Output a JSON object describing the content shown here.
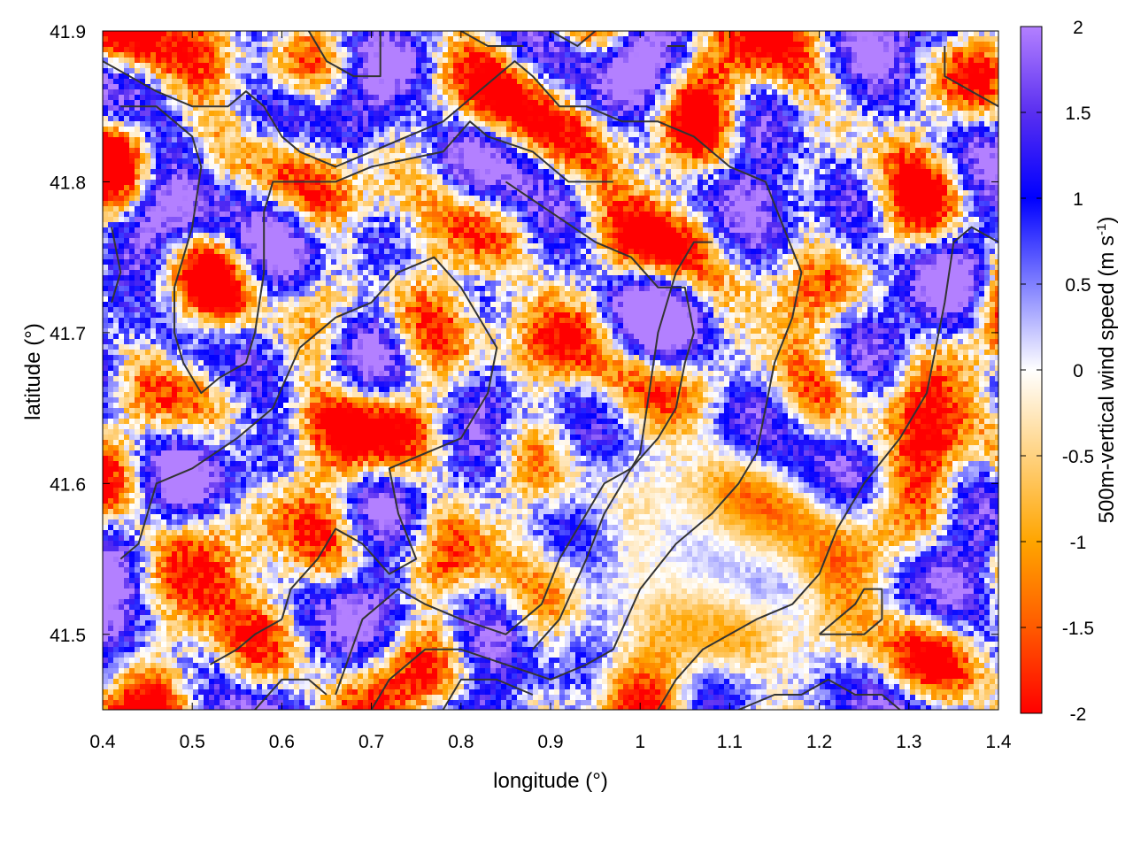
{
  "chart_data": {
    "type": "heatmap",
    "title": "",
    "xlabel": "longitude (°)",
    "ylabel": "latitude (°)",
    "colorbar_label_main": "500m-vertical wind speed (m s",
    "colorbar_label_sup": "-1",
    "colorbar_label_close": ")",
    "xlim": [
      0.4,
      1.4
    ],
    "ylim": [
      41.45,
      41.9
    ],
    "zlim": [
      -2,
      2
    ],
    "x_ticks": [
      0.4,
      0.5,
      0.6,
      0.7,
      0.8,
      0.9,
      1.0,
      1.1,
      1.2,
      1.3,
      1.4
    ],
    "x_tick_labels": [
      "0.4",
      "0.5",
      "0.6",
      "0.7",
      "0.8",
      "0.9",
      "1",
      "1.1",
      "1.2",
      "1.3",
      "1.4"
    ],
    "y_ticks": [
      41.5,
      41.6,
      41.7,
      41.8,
      41.9
    ],
    "y_tick_labels": [
      "41.5",
      "41.6",
      "41.7",
      "41.8",
      "41.9"
    ],
    "cb_ticks": [
      -2,
      -1.5,
      -1,
      -0.5,
      0,
      0.5,
      1,
      1.5,
      2
    ],
    "cb_tick_labels": [
      "-2",
      "-1.5",
      "-1",
      "-0.5",
      "0",
      "0.5",
      "1",
      "1.5",
      "2"
    ],
    "colormap": [
      {
        "v": -2.0,
        "color": "#ff0000"
      },
      {
        "v": -1.5,
        "color": "#ff5a00"
      },
      {
        "v": -1.0,
        "color": "#ffa500"
      },
      {
        "v": -0.5,
        "color": "#ffd280"
      },
      {
        "v": 0.0,
        "color": "#ffffff"
      },
      {
        "v": 0.5,
        "color": "#8080ff"
      },
      {
        "v": 1.0,
        "color": "#0000ff"
      },
      {
        "v": 1.5,
        "color": "#5a2ff0"
      },
      {
        "v": 2.0,
        "color": "#b380ff"
      }
    ],
    "contour_color": "#333333",
    "grid": false,
    "contours": [
      [
        [
          0.4,
          41.88
        ],
        [
          0.46,
          41.86
        ],
        [
          0.5,
          41.85
        ],
        [
          0.54,
          41.85
        ],
        [
          0.56,
          41.86
        ],
        [
          0.58,
          41.85
        ],
        [
          0.6,
          41.83
        ],
        [
          0.62,
          41.82
        ],
        [
          0.66,
          41.81
        ],
        [
          0.7,
          41.82
        ],
        [
          0.74,
          41.83
        ],
        [
          0.78,
          41.84
        ],
        [
          0.82,
          41.86
        ],
        [
          0.86,
          41.88
        ],
        [
          0.88,
          41.87
        ],
        [
          0.91,
          41.85
        ],
        [
          0.94,
          41.85
        ],
        [
          0.98,
          41.84
        ],
        [
          1.02,
          41.84
        ],
        [
          1.06,
          41.83
        ],
        [
          1.1,
          41.81
        ],
        [
          1.14,
          41.8
        ],
        [
          1.16,
          41.77
        ],
        [
          1.18,
          41.74
        ],
        [
          1.17,
          41.71
        ],
        [
          1.15,
          41.68
        ],
        [
          1.14,
          41.65
        ],
        [
          1.13,
          41.62
        ],
        [
          1.11,
          41.6
        ],
        [
          1.08,
          41.58
        ],
        [
          1.04,
          41.56
        ],
        [
          1.0,
          41.53
        ],
        [
          0.97,
          41.49
        ],
        [
          0.94,
          41.48
        ],
        [
          0.9,
          41.47
        ],
        [
          0.85,
          41.48
        ],
        [
          0.8,
          41.49
        ],
        [
          0.76,
          41.49
        ],
        [
          0.72,
          41.47
        ],
        [
          0.7,
          41.45
        ]
      ],
      [
        [
          0.42,
          41.85
        ],
        [
          0.46,
          41.85
        ],
        [
          0.5,
          41.83
        ],
        [
          0.51,
          41.81
        ],
        [
          0.5,
          41.77
        ],
        [
          0.48,
          41.73
        ],
        [
          0.48,
          41.7
        ],
        [
          0.49,
          41.68
        ],
        [
          0.51,
          41.66
        ],
        [
          0.53,
          41.67
        ],
        [
          0.56,
          41.68
        ],
        [
          0.57,
          41.7
        ],
        [
          0.58,
          41.74
        ],
        [
          0.58,
          41.78
        ],
        [
          0.59,
          41.8
        ],
        [
          0.62,
          41.8
        ],
        [
          0.66,
          41.8
        ],
        [
          0.7,
          41.81
        ],
        [
          0.78,
          41.82
        ],
        [
          0.81,
          41.84
        ],
        [
          0.83,
          41.83
        ],
        [
          0.88,
          41.82
        ],
        [
          0.92,
          41.8
        ],
        [
          0.95,
          41.8
        ],
        [
          0.97,
          41.8
        ]
      ],
      [
        [
          0.85,
          41.8
        ],
        [
          0.9,
          41.78
        ],
        [
          0.95,
          41.76
        ],
        [
          0.99,
          41.75
        ],
        [
          1.02,
          41.73
        ],
        [
          1.05,
          41.73
        ],
        [
          1.06,
          41.7
        ],
        [
          1.05,
          41.68
        ],
        [
          1.04,
          41.65
        ],
        [
          1.02,
          41.63
        ],
        [
          0.99,
          41.61
        ],
        [
          0.96,
          41.58
        ],
        [
          0.94,
          41.55
        ],
        [
          0.91,
          41.51
        ],
        [
          0.88,
          41.49
        ]
      ],
      [
        [
          0.52,
          41.48
        ],
        [
          0.55,
          41.49
        ],
        [
          0.57,
          41.5
        ],
        [
          0.6,
          41.51
        ],
        [
          0.61,
          41.53
        ],
        [
          0.64,
          41.55
        ],
        [
          0.66,
          41.57
        ],
        [
          0.69,
          41.56
        ],
        [
          0.72,
          41.54
        ],
        [
          0.75,
          41.55
        ],
        [
          0.73,
          41.58
        ],
        [
          0.72,
          41.61
        ],
        [
          0.76,
          41.62
        ],
        [
          0.8,
          41.63
        ],
        [
          0.83,
          41.66
        ],
        [
          0.84,
          41.69
        ],
        [
          0.83,
          41.7
        ],
        [
          0.8,
          41.73
        ],
        [
          0.77,
          41.75
        ],
        [
          0.73,
          41.74
        ],
        [
          0.7,
          41.72
        ],
        [
          0.66,
          41.71
        ],
        [
          0.62,
          41.69
        ],
        [
          0.59,
          41.65
        ],
        [
          0.55,
          41.63
        ],
        [
          0.5,
          41.61
        ],
        [
          0.46,
          41.6
        ],
        [
          0.44,
          41.56
        ],
        [
          0.42,
          41.55
        ]
      ],
      [
        [
          0.66,
          41.46
        ],
        [
          0.69,
          41.51
        ],
        [
          0.73,
          41.53
        ],
        [
          0.76,
          41.52
        ],
        [
          0.8,
          41.51
        ],
        [
          0.85,
          41.5
        ],
        [
          0.89,
          41.52
        ],
        [
          0.91,
          41.55
        ],
        [
          0.94,
          41.58
        ],
        [
          0.96,
          41.6
        ],
        [
          0.99,
          41.61
        ],
        [
          1.0,
          41.62
        ],
        [
          1.01,
          41.66
        ],
        [
          1.02,
          41.7
        ],
        [
          1.04,
          41.74
        ],
        [
          1.06,
          41.76
        ],
        [
          1.08,
          41.76
        ],
        [
          1.06,
          41.76
        ]
      ],
      [
        [
          0.57,
          41.45
        ],
        [
          0.6,
          41.47
        ],
        [
          0.63,
          41.47
        ],
        [
          0.65,
          41.46
        ]
      ],
      [
        [
          0.78,
          41.45
        ],
        [
          0.8,
          41.47
        ],
        [
          0.84,
          41.47
        ],
        [
          0.88,
          41.46
        ]
      ],
      [
        [
          1.02,
          41.45
        ],
        [
          1.04,
          41.47
        ],
        [
          1.07,
          41.49
        ],
        [
          1.1,
          41.5
        ],
        [
          1.13,
          41.51
        ],
        [
          1.17,
          41.52
        ],
        [
          1.2,
          41.54
        ],
        [
          1.22,
          41.57
        ],
        [
          1.25,
          41.6
        ],
        [
          1.29,
          41.63
        ],
        [
          1.32,
          41.66
        ],
        [
          1.34,
          41.72
        ],
        [
          1.35,
          41.76
        ],
        [
          1.37,
          41.77
        ],
        [
          1.4,
          41.76
        ]
      ],
      [
        [
          1.11,
          41.45
        ],
        [
          1.15,
          41.46
        ],
        [
          1.18,
          41.46
        ],
        [
          1.21,
          41.47
        ],
        [
          1.24,
          41.46
        ],
        [
          1.27,
          41.46
        ],
        [
          1.29,
          41.45
        ]
      ],
      [
        [
          1.2,
          41.5
        ],
        [
          1.22,
          41.51
        ],
        [
          1.24,
          41.52
        ],
        [
          1.25,
          41.53
        ],
        [
          1.27,
          41.53
        ],
        [
          1.27,
          41.51
        ],
        [
          1.25,
          41.5
        ],
        [
          1.22,
          41.5
        ],
        [
          1.2,
          41.5
        ]
      ],
      [
        [
          0.63,
          41.9
        ],
        [
          0.65,
          41.88
        ],
        [
          0.68,
          41.87
        ],
        [
          0.71,
          41.87
        ],
        [
          0.71,
          41.9
        ]
      ],
      [
        [
          0.8,
          41.9
        ],
        [
          0.83,
          41.89
        ],
        [
          0.87,
          41.89
        ]
      ],
      [
        [
          0.9,
          41.9
        ],
        [
          0.93,
          41.89
        ],
        [
          0.95,
          41.9
        ]
      ],
      [
        [
          1.03,
          41.89
        ],
        [
          1.05,
          41.89
        ]
      ],
      [
        [
          1.34,
          41.89
        ],
        [
          1.34,
          41.87
        ],
        [
          1.37,
          41.86
        ],
        [
          1.4,
          41.85
        ]
      ],
      [
        [
          0.41,
          41.77
        ],
        [
          0.42,
          41.74
        ],
        [
          0.41,
          41.72
        ]
      ]
    ]
  }
}
